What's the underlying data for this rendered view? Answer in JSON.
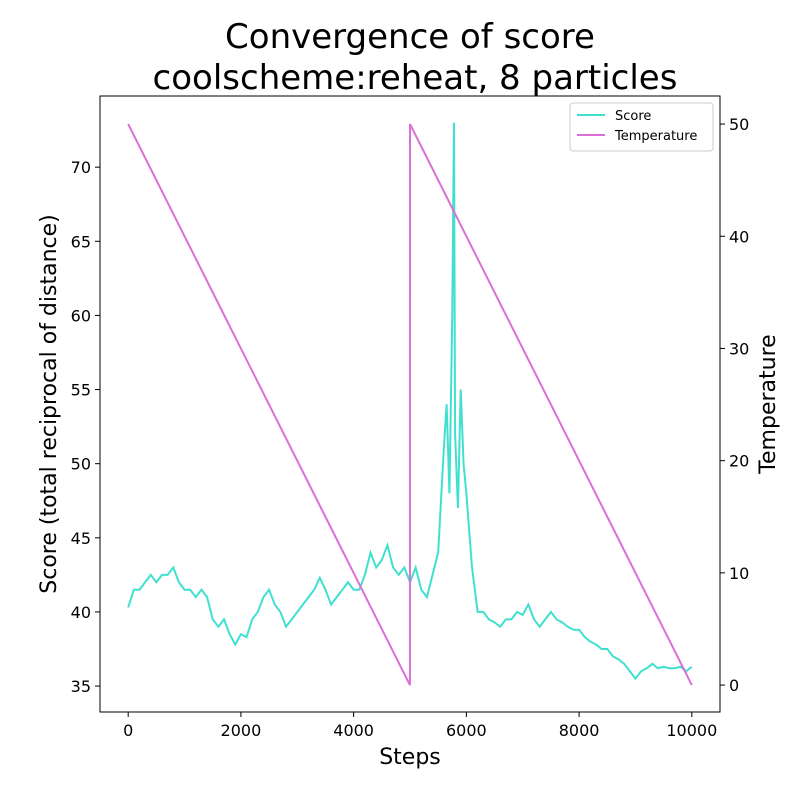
{
  "chart_data": {
    "type": "line",
    "title": [
      "Convergence of score",
      "coolscheme:reheat, 8 particles"
    ],
    "xlabel": "Steps",
    "ylabel": "Score (total reciprocal of distance)",
    "y2label": "Temperature",
    "xlim": [
      -500,
      10500
    ],
    "ylim": [
      33.25,
      74.8
    ],
    "y2lim": [
      -2.4,
      52.5
    ],
    "xticks": [
      0,
      2000,
      4000,
      6000,
      8000,
      10000
    ],
    "yticks": [
      35,
      40,
      45,
      50,
      55,
      60,
      65,
      70
    ],
    "y2ticks": [
      0,
      10,
      20,
      30,
      40,
      50
    ],
    "legend": "upper right",
    "series": [
      {
        "name": "Score",
        "color": "#40e0d0",
        "x": [
          0,
          100,
          200,
          300,
          400,
          500,
          600,
          700,
          800,
          900,
          1000,
          1100,
          1200,
          1300,
          1400,
          1500,
          1600,
          1700,
          1800,
          1900,
          2000,
          2100,
          2200,
          2300,
          2400,
          2500,
          2600,
          2700,
          2800,
          2900,
          3000,
          3100,
          3200,
          3300,
          3400,
          3500,
          3600,
          3700,
          3800,
          3900,
          4000,
          4100,
          4200,
          4300,
          4400,
          4500,
          4600,
          4700,
          4800,
          4900,
          5000,
          5100,
          5200,
          5300,
          5400,
          5500,
          5600,
          5650,
          5700,
          5750,
          5780,
          5800,
          5850,
          5900,
          5950,
          6000,
          6100,
          6200,
          6300,
          6400,
          6500,
          6600,
          6700,
          6800,
          6900,
          7000,
          7100,
          7200,
          7300,
          7400,
          7500,
          7600,
          7700,
          7800,
          7900,
          8000,
          8100,
          8200,
          8300,
          8400,
          8500,
          8600,
          8700,
          8800,
          8900,
          9000,
          9100,
          9200,
          9300,
          9400,
          9500,
          9600,
          9700,
          9800,
          9900,
          10000
        ],
        "values": [
          40.3,
          41.5,
          41.5,
          42,
          42.5,
          42,
          42.5,
          42.5,
          43,
          42,
          41.5,
          41.5,
          41,
          41.5,
          41,
          39.5,
          39,
          39.5,
          38.5,
          37.8,
          38.5,
          38.3,
          39.5,
          40,
          41,
          41.5,
          40.5,
          40,
          39,
          39.5,
          40,
          40.5,
          41,
          41.5,
          42.3,
          41.5,
          40.5,
          41,
          41.5,
          42,
          41.5,
          41.5,
          42.5,
          44,
          43,
          43.5,
          44.5,
          43,
          42.5,
          43,
          42,
          43,
          41.5,
          41,
          42.5,
          44,
          51,
          54,
          48,
          60,
          73,
          52,
          47,
          55,
          50,
          48,
          43,
          40,
          40,
          39.5,
          39.3,
          39,
          39.5,
          39.5,
          40,
          39.8,
          40.5,
          39.5,
          39,
          39.5,
          40,
          39.5,
          39.3,
          39,
          38.8,
          38.8,
          38.3,
          38,
          37.8,
          37.5,
          37.5,
          37,
          36.8,
          36.5,
          36,
          35.5,
          36,
          36.2,
          36.5,
          36.2,
          36.3,
          36.2,
          36.2,
          36.3,
          36,
          36.3
        ]
      },
      {
        "name": "Temperature",
        "color": "#da70d6",
        "axis": "y2",
        "x": [
          0,
          4999,
          5000,
          10000
        ],
        "values": [
          50,
          0,
          50,
          0
        ]
      }
    ]
  }
}
